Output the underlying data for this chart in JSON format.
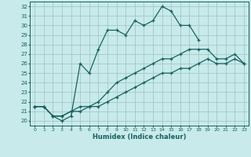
{
  "xlabel": "Humidex (Indice chaleur)",
  "background_color": "#c8eaea",
  "grid_color": "#a0c8c8",
  "line_color": "#1a6060",
  "xlim": [
    -0.5,
    23.5
  ],
  "ylim": [
    19.5,
    32.5
  ],
  "xticks": [
    0,
    1,
    2,
    3,
    4,
    5,
    6,
    7,
    8,
    9,
    10,
    11,
    12,
    13,
    14,
    15,
    16,
    17,
    18,
    19,
    20,
    21,
    22,
    23
  ],
  "yticks": [
    20,
    21,
    22,
    23,
    24,
    25,
    26,
    27,
    28,
    29,
    30,
    31,
    32
  ],
  "series": [
    {
      "x": [
        0,
        1,
        2,
        3,
        4,
        5,
        6,
        7,
        8,
        9,
        10,
        11,
        12,
        13,
        14,
        15,
        16,
        17,
        18
      ],
      "y": [
        21.5,
        21.5,
        20.5,
        20.0,
        20.5,
        26.0,
        25.0,
        27.5,
        29.5,
        29.5,
        29.0,
        30.5,
        30.0,
        30.5,
        32.0,
        31.5,
        30.0,
        30.0,
        28.5
      ]
    },
    {
      "x": [
        0,
        1,
        2,
        3,
        4,
        5,
        6,
        7,
        8,
        9,
        10,
        11,
        12,
        13,
        14,
        15,
        16,
        17,
        18,
        19,
        20,
        21,
        22,
        23
      ],
      "y": [
        21.5,
        21.5,
        20.5,
        20.5,
        21.0,
        21.5,
        21.5,
        22.0,
        23.0,
        24.0,
        24.5,
        25.0,
        25.5,
        26.0,
        26.5,
        26.5,
        27.0,
        27.5,
        27.5,
        27.5,
        26.5,
        26.5,
        27.0,
        26.0
      ]
    },
    {
      "x": [
        0,
        1,
        2,
        3,
        4,
        5,
        6,
        7,
        8,
        9,
        10,
        11,
        12,
        13,
        14,
        15,
        16,
        17,
        18,
        19,
        20,
        21,
        22,
        23
      ],
      "y": [
        21.5,
        21.5,
        20.5,
        20.5,
        21.0,
        21.0,
        21.5,
        21.5,
        22.0,
        22.5,
        23.0,
        23.5,
        24.0,
        24.5,
        25.0,
        25.0,
        25.5,
        25.5,
        26.0,
        26.5,
        26.0,
        26.0,
        26.5,
        26.0
      ]
    }
  ]
}
